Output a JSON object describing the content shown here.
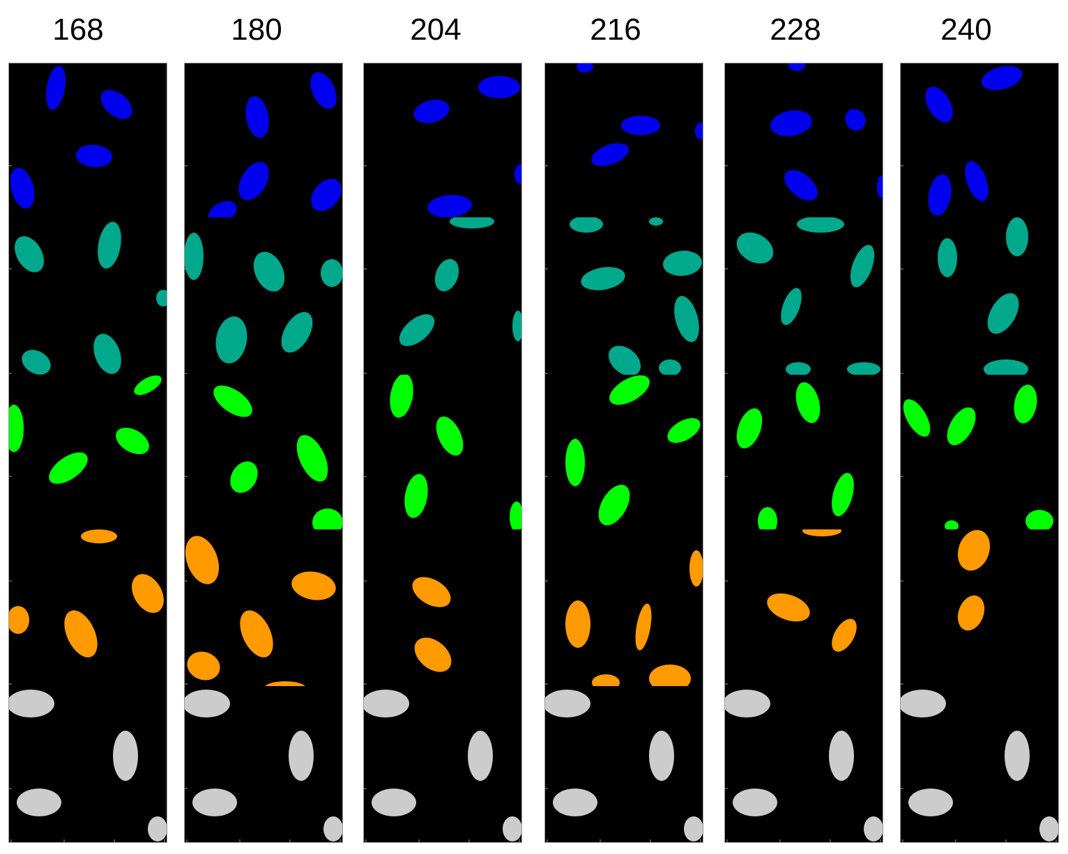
{
  "title": "",
  "columns": [
    {
      "label": "168"
    },
    {
      "label": "180"
    },
    {
      "label": "204"
    },
    {
      "label": "216"
    },
    {
      "label": "228"
    },
    {
      "label": "240"
    }
  ],
  "bands": [
    {
      "name": "band-blue",
      "color": "#0000ee"
    },
    {
      "name": "band-teal",
      "color": "#00a88c"
    },
    {
      "name": "band-green",
      "color": "#00ff00"
    },
    {
      "name": "band-orange",
      "color": "#ff9a00"
    },
    {
      "name": "band-gray",
      "color": "#cccccc"
    }
  ],
  "colors": {
    "background": "#000000",
    "axis": "#999999"
  }
}
